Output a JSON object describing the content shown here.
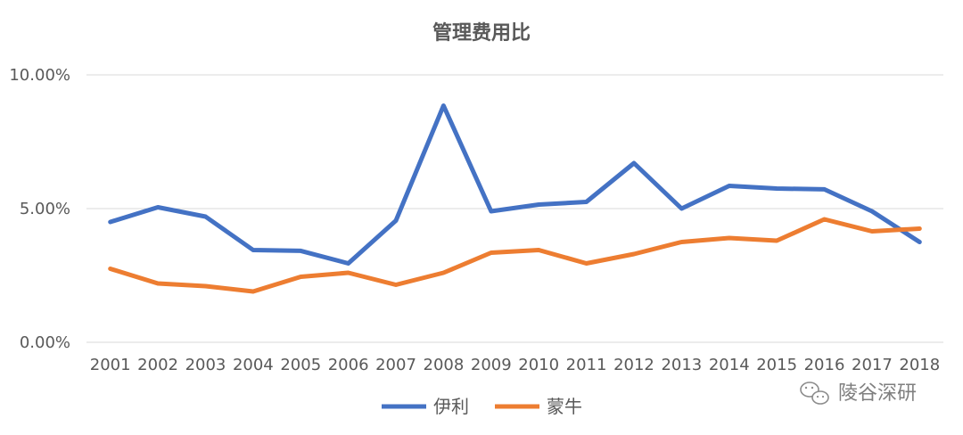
{
  "chart_data": {
    "type": "line",
    "title": "管理费用比",
    "x": [
      "2001",
      "2002",
      "2003",
      "2004",
      "2005",
      "2006",
      "2007",
      "2008",
      "2009",
      "2010",
      "2011",
      "2012",
      "2013",
      "2014",
      "2015",
      "2016",
      "2017",
      "2018"
    ],
    "y_ticks": [
      "0.00%",
      "5.00%",
      "10.00%"
    ],
    "ylim": [
      0,
      10
    ],
    "grid": true,
    "legend_position": "bottom",
    "series": [
      {
        "name": "伊利",
        "color": "#4472C4",
        "values": [
          4.5,
          5.05,
          4.7,
          3.45,
          3.42,
          2.95,
          4.55,
          8.85,
          4.9,
          5.15,
          5.25,
          6.7,
          5.0,
          5.85,
          5.75,
          5.72,
          4.9,
          3.75
        ]
      },
      {
        "name": "蒙牛",
        "color": "#ED7D31",
        "values": [
          2.75,
          2.2,
          2.1,
          1.9,
          2.45,
          2.6,
          2.15,
          2.6,
          3.35,
          3.45,
          2.95,
          3.3,
          3.75,
          3.9,
          3.8,
          4.6,
          4.15,
          4.25
        ]
      }
    ]
  },
  "watermark": {
    "text": "陵谷深研",
    "icon": "wechat-icon"
  }
}
